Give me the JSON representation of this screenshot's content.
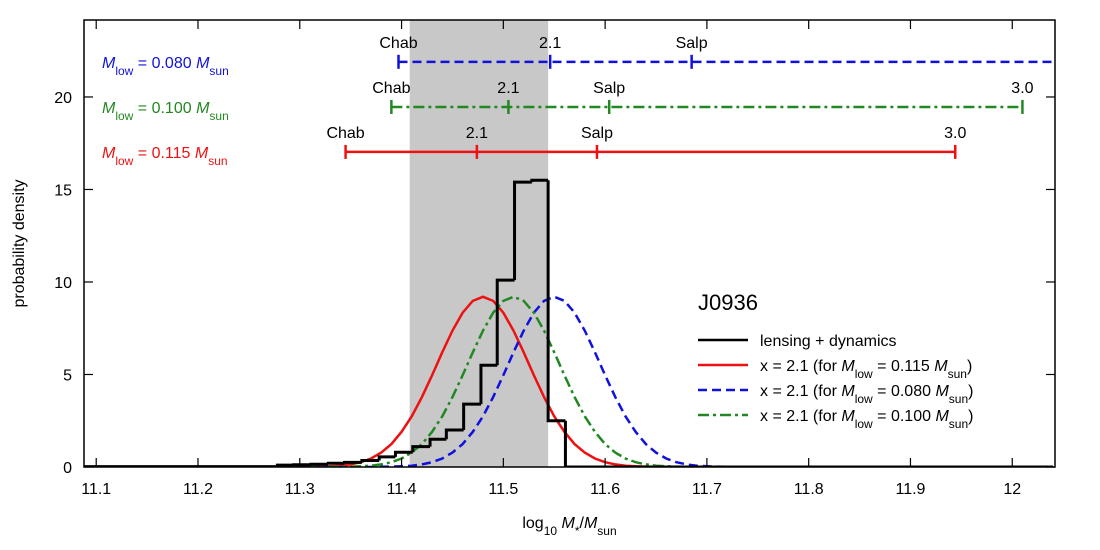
{
  "chart_data": {
    "type": "line",
    "xlabel": [
      "log",
      "10",
      " ",
      "M",
      "*",
      "/",
      "M",
      "sun"
    ],
    "ylabel": "probability density",
    "xlim": [
      11.088,
      12.042
    ],
    "ylim": [
      0,
      24.16
    ],
    "xticks": [
      11.1,
      11.2,
      11.3,
      11.4,
      11.5,
      11.6,
      11.7,
      11.8,
      11.9,
      12
    ],
    "yticks": [
      0,
      5,
      10,
      15,
      20
    ],
    "shaded_region": [
      11.408,
      11.544
    ],
    "shaded_color": "#c8c8c8",
    "legend_title": "J0936",
    "legend_position": "right",
    "histogram": {
      "name": "lensing + dynamics",
      "color": "#000000",
      "bins": [
        11.09,
        11.278,
        11.294,
        11.311,
        11.328,
        11.344,
        11.361,
        11.378,
        11.394,
        11.411,
        11.428,
        11.444,
        11.461,
        11.478,
        11.494,
        11.511,
        11.528,
        11.544,
        11.561,
        12.04
      ],
      "counts": [
        0.02,
        0.1,
        0.12,
        0.15,
        0.2,
        0.25,
        0.35,
        0.55,
        0.8,
        1.1,
        1.5,
        2.0,
        3.4,
        5.5,
        10.1,
        15.4,
        15.5,
        2.5,
        0
      ]
    },
    "series": [
      {
        "name": [
          "x = 2.1 (for ",
          "M",
          "low",
          " = 0.115 ",
          "M",
          "sun",
          ")"
        ],
        "color": "#ee1111",
        "style": "solid",
        "x": [
          11.09,
          11.3,
          11.31,
          11.32,
          11.33,
          11.34,
          11.35,
          11.36,
          11.37,
          11.38,
          11.39,
          11.4,
          11.41,
          11.42,
          11.43,
          11.44,
          11.45,
          11.46,
          11.47,
          11.48,
          11.49,
          11.5,
          11.51,
          11.52,
          11.53,
          11.54,
          11.55,
          11.56,
          11.57,
          11.58,
          11.59,
          11.6,
          11.61,
          11.62,
          11.63,
          11.64,
          11.65,
          11.66,
          12.04
        ],
        "values": [
          0,
          0,
          0.01,
          0.02,
          0.04,
          0.07,
          0.14,
          0.26,
          0.46,
          0.78,
          1.24,
          1.9,
          2.74,
          3.78,
          4.96,
          6.2,
          7.37,
          8.34,
          8.98,
          9.2,
          8.98,
          8.34,
          7.37,
          6.2,
          4.96,
          3.78,
          2.74,
          1.9,
          1.24,
          0.78,
          0.46,
          0.26,
          0.14,
          0.07,
          0.04,
          0.02,
          0.01,
          0,
          0
        ]
      },
      {
        "name": [
          "x = 2.1 (for ",
          "M",
          "low",
          " = 0.080 ",
          "M",
          "sun",
          ")"
        ],
        "color": "#1111dd",
        "style": "dashed",
        "x": [
          11.09,
          11.37,
          11.38,
          11.39,
          11.4,
          11.41,
          11.42,
          11.43,
          11.44,
          11.45,
          11.46,
          11.47,
          11.48,
          11.49,
          11.5,
          11.51,
          11.52,
          11.53,
          11.54,
          11.55,
          11.56,
          11.57,
          11.58,
          11.59,
          11.6,
          11.61,
          11.62,
          11.63,
          11.64,
          11.65,
          11.66,
          11.67,
          11.68,
          11.69,
          11.7,
          11.71,
          11.72,
          11.73,
          12.04
        ],
        "values": [
          0,
          0,
          0.01,
          0.02,
          0.04,
          0.07,
          0.14,
          0.26,
          0.46,
          0.78,
          1.24,
          1.9,
          2.74,
          3.78,
          4.96,
          6.2,
          7.37,
          8.34,
          8.98,
          9.2,
          8.98,
          8.34,
          7.37,
          6.2,
          4.96,
          3.78,
          2.74,
          1.9,
          1.24,
          0.78,
          0.46,
          0.26,
          0.14,
          0.07,
          0.04,
          0.02,
          0.01,
          0,
          0
        ]
      },
      {
        "name": [
          "x = 2.1 (for ",
          "M",
          "low",
          " = 0.100 ",
          "M",
          "sun",
          ")"
        ],
        "color": "#228822",
        "style": "dashdot",
        "x": [
          11.09,
          11.33,
          11.34,
          11.35,
          11.36,
          11.37,
          11.38,
          11.39,
          11.4,
          11.41,
          11.42,
          11.43,
          11.44,
          11.45,
          11.46,
          11.47,
          11.48,
          11.49,
          11.5,
          11.51,
          11.52,
          11.53,
          11.54,
          11.55,
          11.56,
          11.57,
          11.58,
          11.59,
          11.6,
          11.61,
          11.62,
          11.63,
          11.64,
          11.65,
          11.66,
          11.67,
          11.68,
          11.69,
          12.04
        ],
        "values": [
          0,
          0,
          0.01,
          0.02,
          0.04,
          0.07,
          0.14,
          0.26,
          0.46,
          0.78,
          1.24,
          1.9,
          2.74,
          3.78,
          4.96,
          6.2,
          7.37,
          8.34,
          8.98,
          9.2,
          8.98,
          8.34,
          7.37,
          6.2,
          4.96,
          3.78,
          2.74,
          1.9,
          1.24,
          0.78,
          0.46,
          0.26,
          0.14,
          0.07,
          0.04,
          0.02,
          0.01,
          0,
          0
        ]
      }
    ],
    "imf_scales": [
      {
        "label": [
          "M",
          "low",
          " = 0.080 ",
          "M",
          "sun"
        ],
        "color": "#1111dd",
        "style": "dashed",
        "y": 21.9,
        "open_right": true,
        "ticks": [
          {
            "value": 11.397,
            "label": "Chab"
          },
          {
            "value": 11.546,
            "label": "2.1"
          },
          {
            "value": 11.685,
            "label": "Salp"
          }
        ]
      },
      {
        "label": [
          "M",
          "low",
          " = 0.100 ",
          "M",
          "sun"
        ],
        "color": "#228822",
        "style": "dashdot",
        "y": 19.46,
        "open_right": false,
        "ticks": [
          {
            "value": 11.39,
            "label": "Chab"
          },
          {
            "value": 11.505,
            "label": "2.1"
          },
          {
            "value": 11.604,
            "label": "Salp"
          },
          {
            "value": 12.01,
            "label": "3.0"
          }
        ]
      },
      {
        "label": [
          "M",
          "low",
          " = 0.115 ",
          "M",
          "sun"
        ],
        "color": "#ee1111",
        "style": "solid",
        "y": 17.03,
        "open_right": false,
        "ticks": [
          {
            "value": 11.345,
            "label": "Chab"
          },
          {
            "value": 11.474,
            "label": "2.1"
          },
          {
            "value": 11.592,
            "label": "Salp"
          },
          {
            "value": 11.944,
            "label": "3.0"
          }
        ]
      }
    ]
  }
}
